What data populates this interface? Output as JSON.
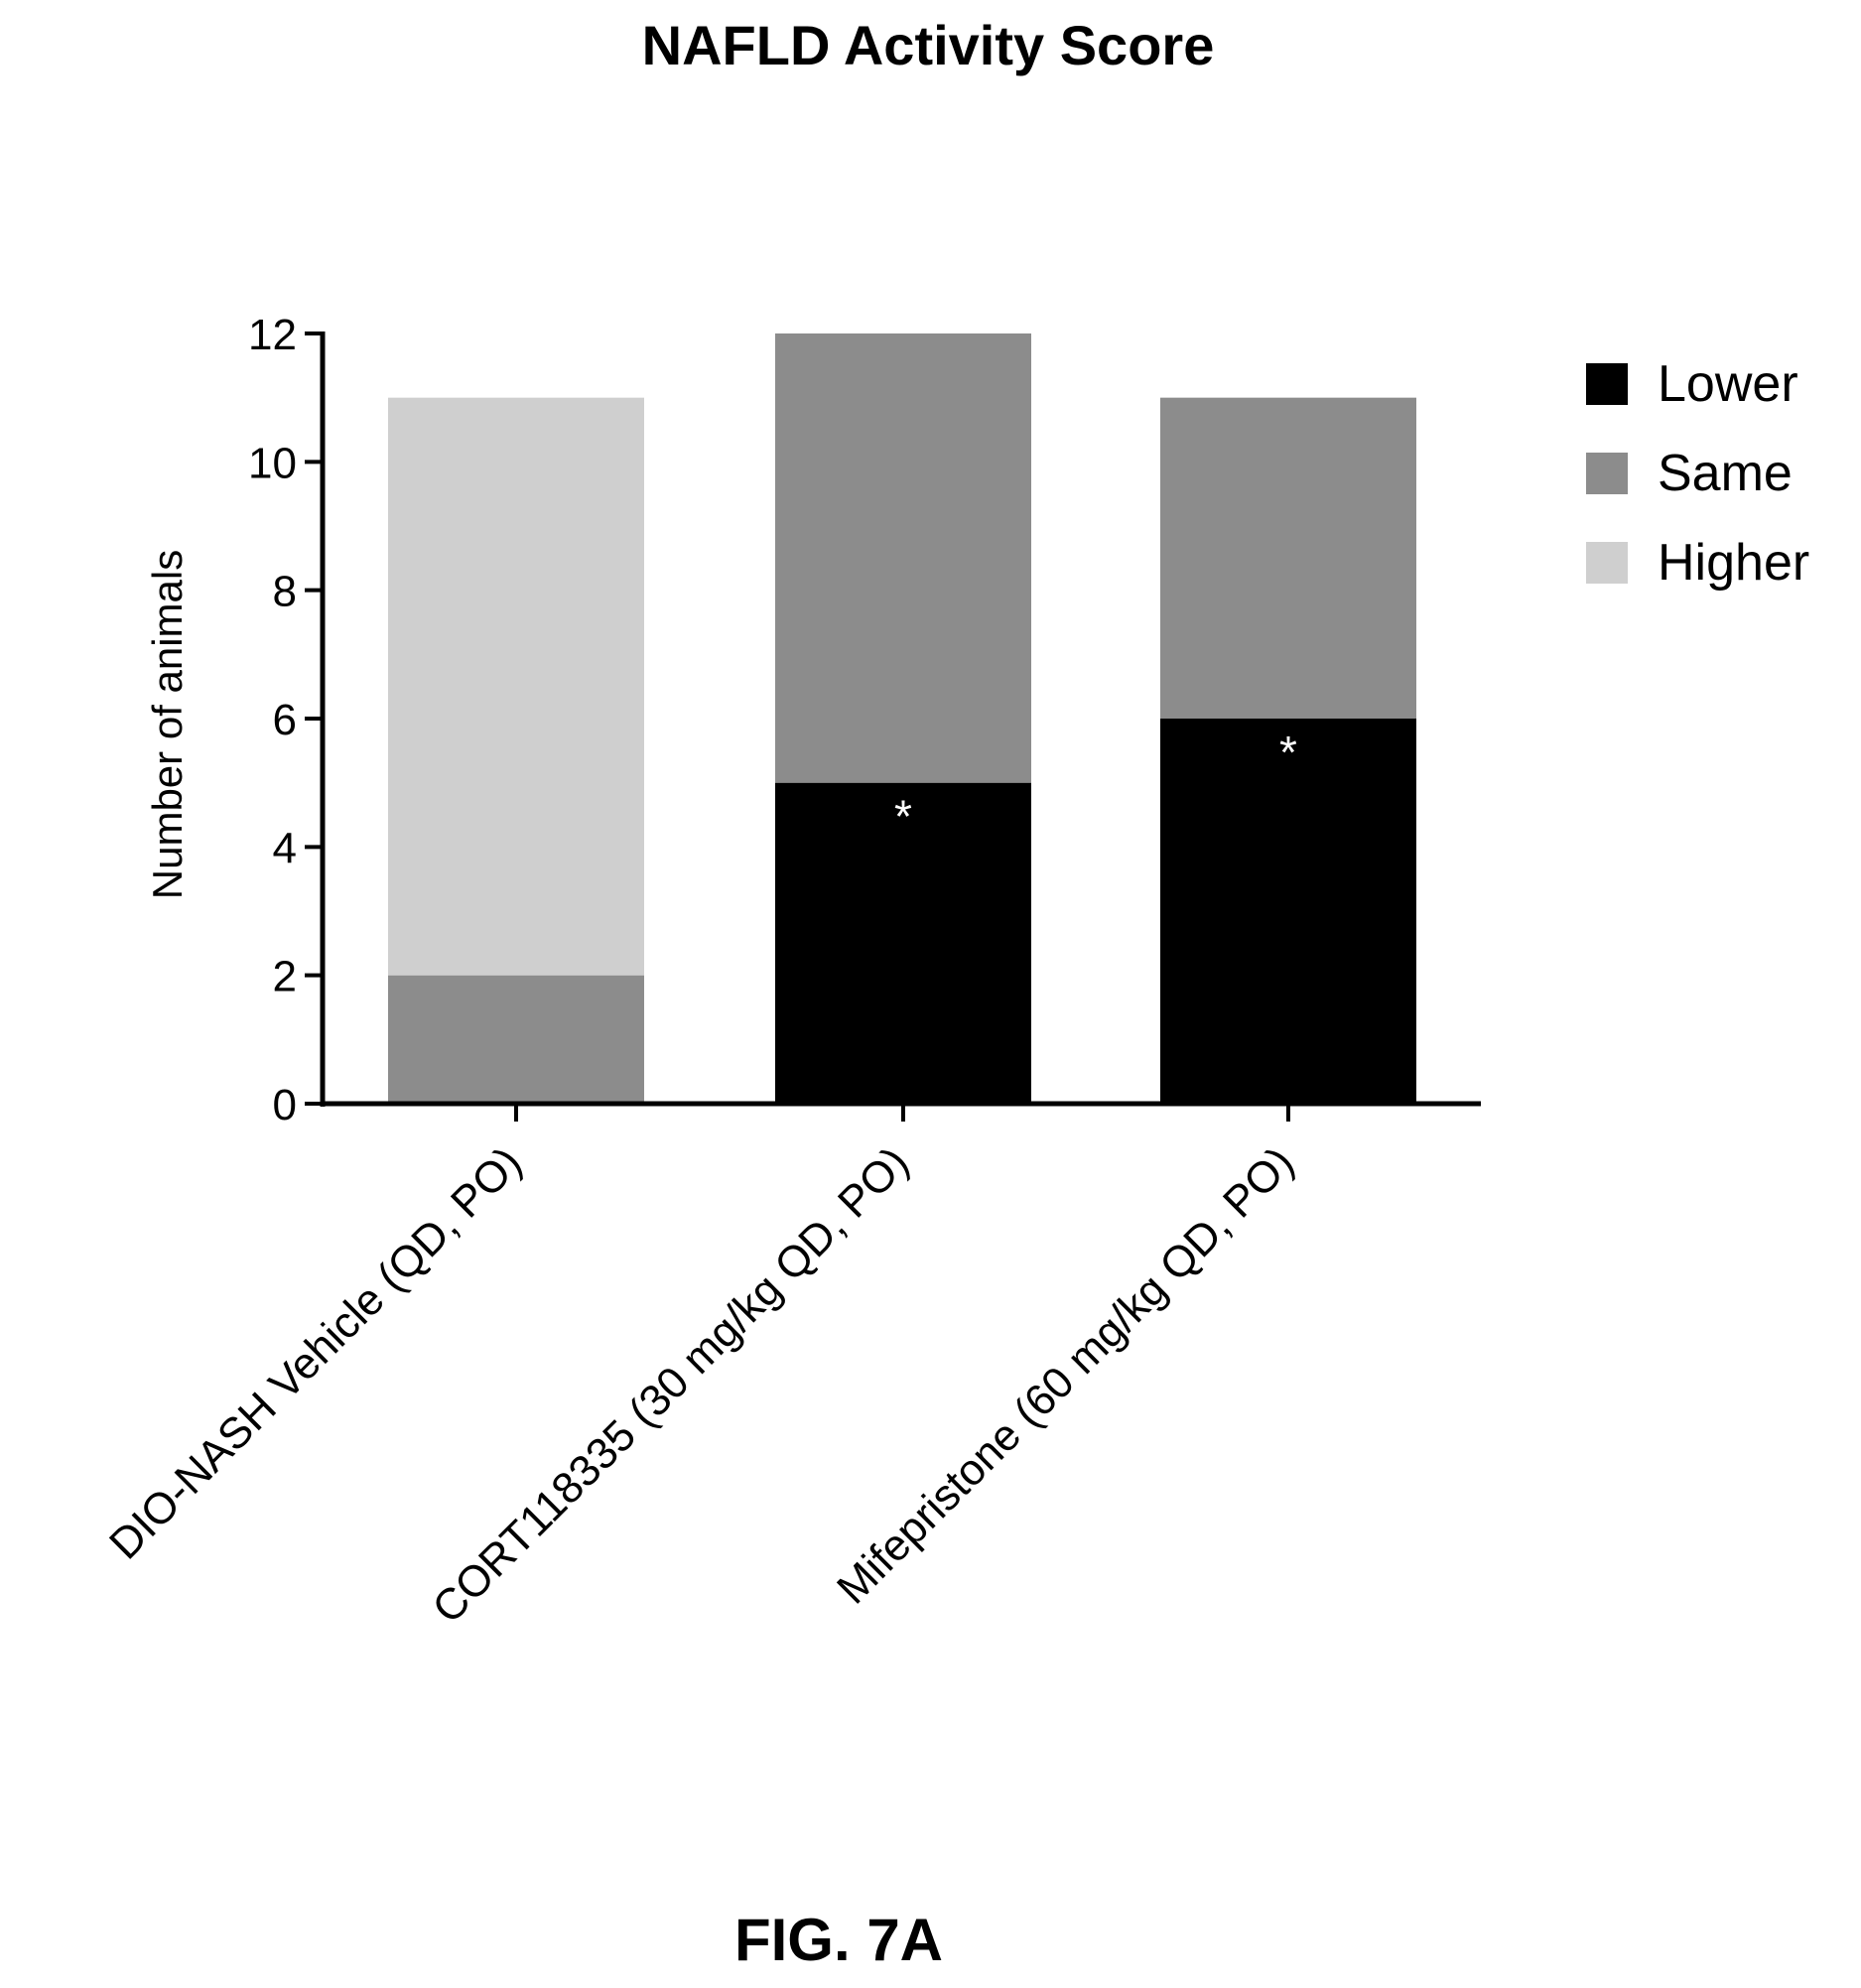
{
  "title": "NAFLD Activity Score",
  "figure_label": "FIG. 7A",
  "chart_data": {
    "type": "bar",
    "stacked": true,
    "title": "NAFLD Activity Score",
    "xlabel": "",
    "ylabel": "Number of animals",
    "ylim": [
      0,
      12
    ],
    "yticks": [
      0,
      2,
      4,
      6,
      8,
      10,
      12
    ],
    "categories": [
      "DIO-NASH Vehicle (QD, PO)",
      "CORT118335 (30 mg/kg QD, PO)",
      "Mifepristone (60 mg/kg QD, PO)"
    ],
    "series": [
      {
        "name": "Lower",
        "values": [
          0,
          5,
          6
        ],
        "color": "#000000"
      },
      {
        "name": "Same",
        "values": [
          2,
          7,
          5
        ],
        "color": "#8c8c8c"
      },
      {
        "name": "Higher",
        "values": [
          9,
          0,
          0
        ],
        "color": "#cfcfcf"
      }
    ],
    "annotations": [
      {
        "category_index": 1,
        "text": "*"
      },
      {
        "category_index": 2,
        "text": "*"
      }
    ],
    "legend_position": "right",
    "grid": false
  }
}
